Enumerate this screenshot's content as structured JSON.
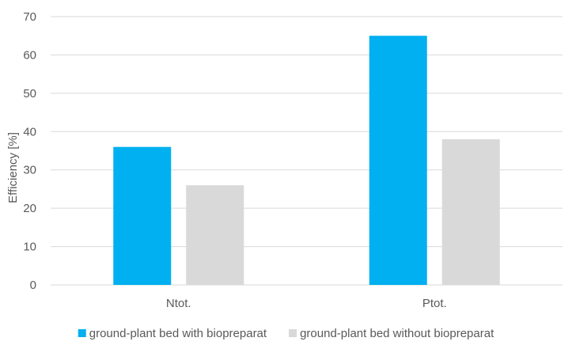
{
  "chart_data": {
    "type": "bar",
    "title": "",
    "xlabel": "",
    "ylabel": "Efficiency [%]",
    "ylim": [
      0,
      70
    ],
    "yticks": [
      0,
      10,
      20,
      30,
      40,
      50,
      60,
      70
    ],
    "categories": [
      "Ntot.",
      "Ptot."
    ],
    "grid": true,
    "legend_position": "bottom",
    "series": [
      {
        "name": "ground-plant bed with biopreparat",
        "color": "#00B0F0",
        "values": [
          36,
          65
        ]
      },
      {
        "name": "ground-plant bed without biopreparat",
        "color": "#D9D9D9",
        "values": [
          26,
          38
        ]
      }
    ]
  }
}
